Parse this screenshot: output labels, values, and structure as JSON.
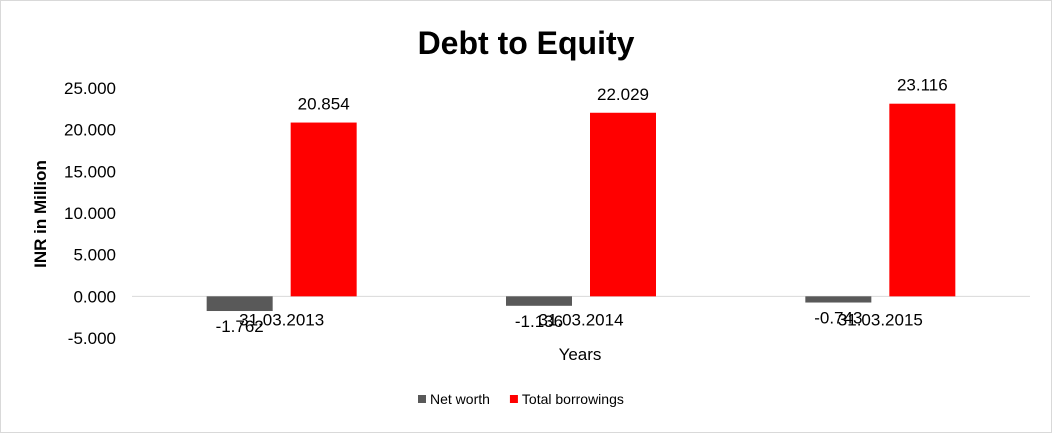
{
  "chart_data": {
    "type": "bar",
    "title": "Debt to Equity",
    "xlabel": "Years",
    "ylabel": "INR in Million",
    "categories": [
      "31.03.2013",
      "31.03.2014",
      "31.03.2015"
    ],
    "series": [
      {
        "name": "Net worth",
        "values": [
          -1.762,
          -1.136,
          -0.743
        ],
        "labels": [
          "-1.762",
          "-1.136",
          "-0.743"
        ],
        "color": "#595959"
      },
      {
        "name": "Total borrowings",
        "values": [
          20.854,
          22.029,
          23.116
        ],
        "labels": [
          "20.854",
          "22.029",
          "23.116"
        ],
        "color": "#ff0000"
      }
    ],
    "yticks": [
      25,
      20,
      15,
      10,
      5,
      0,
      -5
    ],
    "ytick_labels": [
      "25.000",
      "20.000",
      "15.000",
      "10.000",
      "5.000",
      "0.000",
      "-5.000"
    ],
    "ylim": [
      -5,
      25
    ],
    "grid": false,
    "legend_position": "bottom"
  }
}
